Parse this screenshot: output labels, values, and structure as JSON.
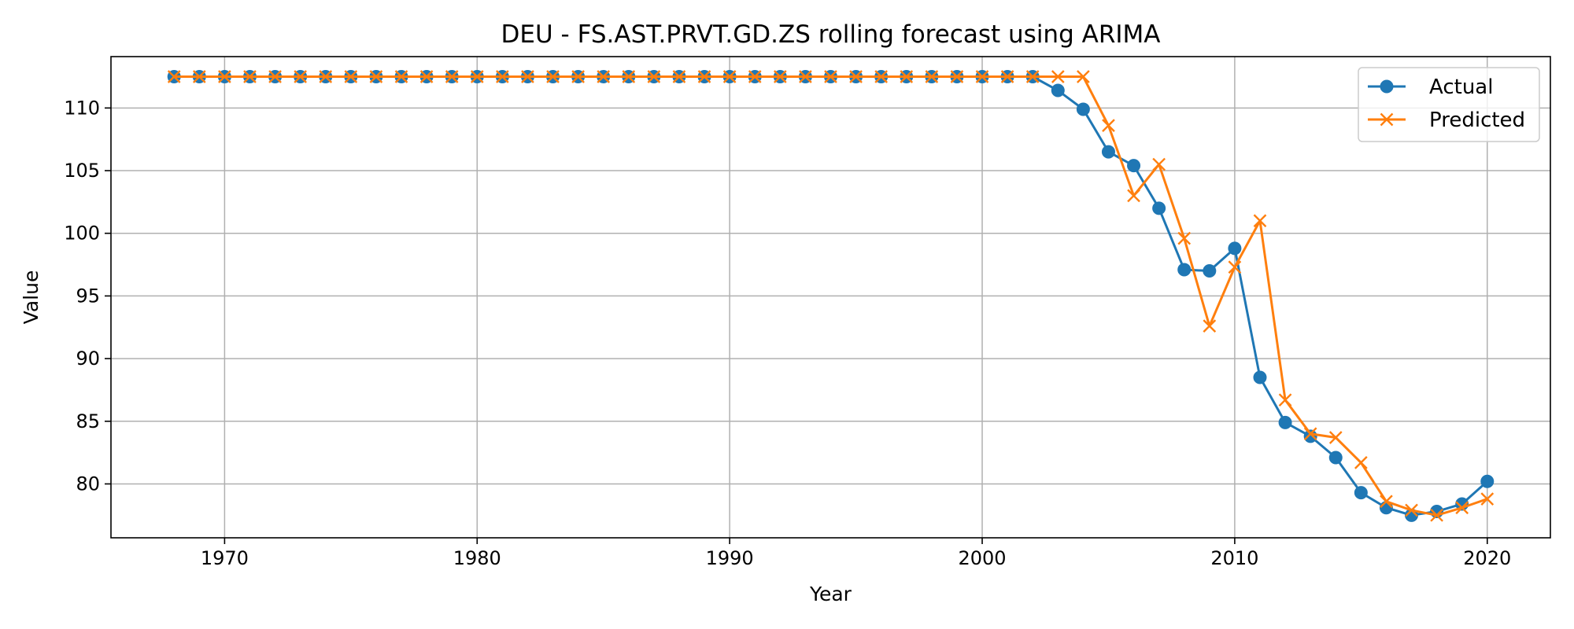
{
  "chart_data": {
    "type": "line",
    "title": "DEU - FS.AST.PRVT.GD.ZS rolling forecast using ARIMA",
    "xlabel": "Year",
    "ylabel": "Value",
    "xlim": [
      1965.5,
      2022.5
    ],
    "ylim": [
      75.7,
      114.1
    ],
    "xticks": [
      1970,
      1980,
      1990,
      2000,
      2010,
      2020
    ],
    "yticks": [
      80,
      85,
      90,
      95,
      100,
      105,
      110
    ],
    "grid": true,
    "legend_position": "top-right",
    "x": [
      1968,
      1969,
      1970,
      1971,
      1972,
      1973,
      1974,
      1975,
      1976,
      1977,
      1978,
      1979,
      1980,
      1981,
      1982,
      1983,
      1984,
      1985,
      1986,
      1987,
      1988,
      1989,
      1990,
      1991,
      1992,
      1993,
      1994,
      1995,
      1996,
      1997,
      1998,
      1999,
      2000,
      2001,
      2002,
      2003,
      2004,
      2005,
      2006,
      2007,
      2008,
      2009,
      2010,
      2011,
      2012,
      2013,
      2014,
      2015,
      2016,
      2017,
      2018,
      2019,
      2020
    ],
    "series": [
      {
        "name": "Actual",
        "color": "#1f77b4",
        "marker": "circle",
        "values": [
          112.5,
          112.5,
          112.5,
          112.5,
          112.5,
          112.5,
          112.5,
          112.5,
          112.5,
          112.5,
          112.5,
          112.5,
          112.5,
          112.5,
          112.5,
          112.5,
          112.5,
          112.5,
          112.5,
          112.5,
          112.5,
          112.5,
          112.5,
          112.5,
          112.5,
          112.5,
          112.5,
          112.5,
          112.5,
          112.5,
          112.5,
          112.5,
          112.5,
          112.5,
          112.5,
          111.4,
          109.9,
          106.5,
          105.4,
          102.0,
          97.1,
          97.0,
          98.8,
          88.5,
          84.9,
          83.8,
          82.1,
          79.3,
          78.1,
          77.5,
          77.8,
          78.4,
          80.2
        ]
      },
      {
        "name": "Predicted",
        "color": "#ff7f0e",
        "marker": "x",
        "values": [
          112.5,
          112.5,
          112.5,
          112.5,
          112.5,
          112.5,
          112.5,
          112.5,
          112.5,
          112.5,
          112.5,
          112.5,
          112.5,
          112.5,
          112.5,
          112.5,
          112.5,
          112.5,
          112.5,
          112.5,
          112.5,
          112.5,
          112.5,
          112.5,
          112.5,
          112.5,
          112.5,
          112.5,
          112.5,
          112.5,
          112.5,
          112.5,
          112.5,
          112.5,
          112.5,
          112.5,
          112.5,
          108.6,
          103.0,
          105.5,
          99.6,
          92.6,
          97.3,
          101.0,
          86.7,
          84.0,
          83.7,
          81.7,
          78.6,
          77.9,
          77.5,
          78.1,
          78.8
        ]
      }
    ]
  }
}
